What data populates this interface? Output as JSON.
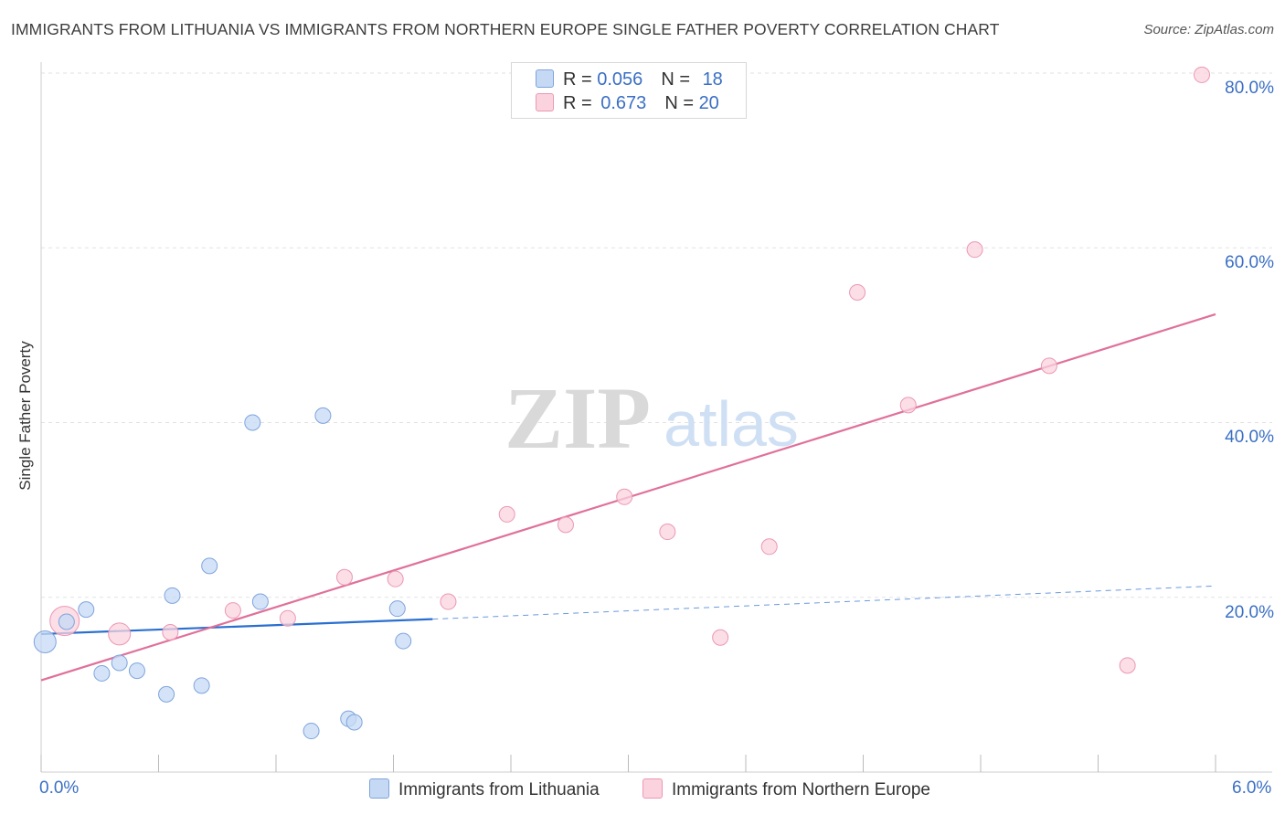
{
  "header": {
    "title": "IMMIGRANTS FROM LITHUANIA VS IMMIGRANTS FROM NORTHERN EUROPE SINGLE FATHER POVERTY CORRELATION CHART",
    "source": "Source: ZipAtlas.com"
  },
  "watermark": {
    "zip": "ZIP",
    "atlas": "atlas"
  },
  "legend": {
    "series1": {
      "r_label": "R = ",
      "r_value": "0.056",
      "n_label": "N = ",
      "n_value": "18"
    },
    "series2": {
      "r_label": "R = ",
      "r_value": "0.673",
      "n_label": "N = ",
      "n_value": "20"
    }
  },
  "chart_data": {
    "type": "scatter",
    "title": "IMMIGRANTS FROM LITHUANIA VS IMMIGRANTS FROM NORTHERN EUROPE SINGLE FATHER POVERTY CORRELATION CHART",
    "xlabel": "",
    "ylabel": "Single Father Poverty",
    "xlim": [
      0,
      6
    ],
    "ylim": [
      0,
      80
    ],
    "x_tick_labels": [
      "0.0%",
      "6.0%"
    ],
    "y_ticks": [
      20,
      40,
      60,
      80
    ],
    "y_tick_labels": [
      "20.0%",
      "40.0%",
      "60.0%",
      "80.0%"
    ],
    "grid": true,
    "legend_position": "top-center",
    "colors": {
      "lithuania_fill": "#c5d9f5",
      "lithuania_stroke": "#7ea4dc",
      "lithuania_line": "#2a6fd0",
      "northern_fill": "#fbd3df",
      "northern_stroke": "#eb98b3",
      "northern_line": "#e0709a",
      "axis_label": "#3a6fc4"
    },
    "series": [
      {
        "name": "Immigrants from Lithuania",
        "r": 0.056,
        "n": 18,
        "points": [
          {
            "x": 0.02,
            "y": 14.9,
            "size": "large"
          },
          {
            "x": 0.13,
            "y": 17.2
          },
          {
            "x": 0.23,
            "y": 18.6
          },
          {
            "x": 0.31,
            "y": 11.3
          },
          {
            "x": 0.4,
            "y": 12.5
          },
          {
            "x": 0.49,
            "y": 11.6
          },
          {
            "x": 0.64,
            "y": 8.9
          },
          {
            "x": 0.67,
            "y": 20.2
          },
          {
            "x": 0.82,
            "y": 9.9
          },
          {
            "x": 0.86,
            "y": 23.6
          },
          {
            "x": 1.08,
            "y": 40.0
          },
          {
            "x": 1.12,
            "y": 19.5
          },
          {
            "x": 1.38,
            "y": 4.7
          },
          {
            "x": 1.44,
            "y": 40.8
          },
          {
            "x": 1.57,
            "y": 6.1
          },
          {
            "x": 1.6,
            "y": 5.7
          },
          {
            "x": 1.82,
            "y": 18.7
          },
          {
            "x": 1.85,
            "y": 15.0
          }
        ],
        "trend": {
          "x": [
            0,
            2.0
          ],
          "y": [
            15.8,
            17.5
          ],
          "extended": {
            "x": [
              2.0,
              6.0
            ],
            "y": [
              17.5,
              21.3
            ]
          }
        }
      },
      {
        "name": "Immigrants from Northern Europe",
        "r": 0.673,
        "n": 20,
        "points": [
          {
            "x": 0.12,
            "y": 17.3,
            "size": "large"
          },
          {
            "x": 0.4,
            "y": 15.8
          },
          {
            "x": 0.66,
            "y": 16.0
          },
          {
            "x": 0.98,
            "y": 18.5
          },
          {
            "x": 1.26,
            "y": 17.6
          },
          {
            "x": 1.55,
            "y": 22.3
          },
          {
            "x": 1.81,
            "y": 22.1
          },
          {
            "x": 2.08,
            "y": 19.5
          },
          {
            "x": 2.38,
            "y": 29.5
          },
          {
            "x": 2.68,
            "y": 28.3
          },
          {
            "x": 2.98,
            "y": 31.5
          },
          {
            "x": 3.2,
            "y": 27.5
          },
          {
            "x": 3.47,
            "y": 15.4
          },
          {
            "x": 3.72,
            "y": 25.8
          },
          {
            "x": 4.17,
            "y": 54.9
          },
          {
            "x": 4.43,
            "y": 42.0
          },
          {
            "x": 4.77,
            "y": 59.8
          },
          {
            "x": 5.15,
            "y": 46.5
          },
          {
            "x": 5.55,
            "y": 12.2
          },
          {
            "x": 5.93,
            "y": 79.8
          }
        ],
        "trend": {
          "x": [
            0,
            6.0
          ],
          "y": [
            10.5,
            52.4
          ]
        }
      }
    ]
  },
  "bottom_legend": {
    "item1": "Immigrants from Lithuania",
    "item2": "Immigrants from Northern Europe"
  }
}
